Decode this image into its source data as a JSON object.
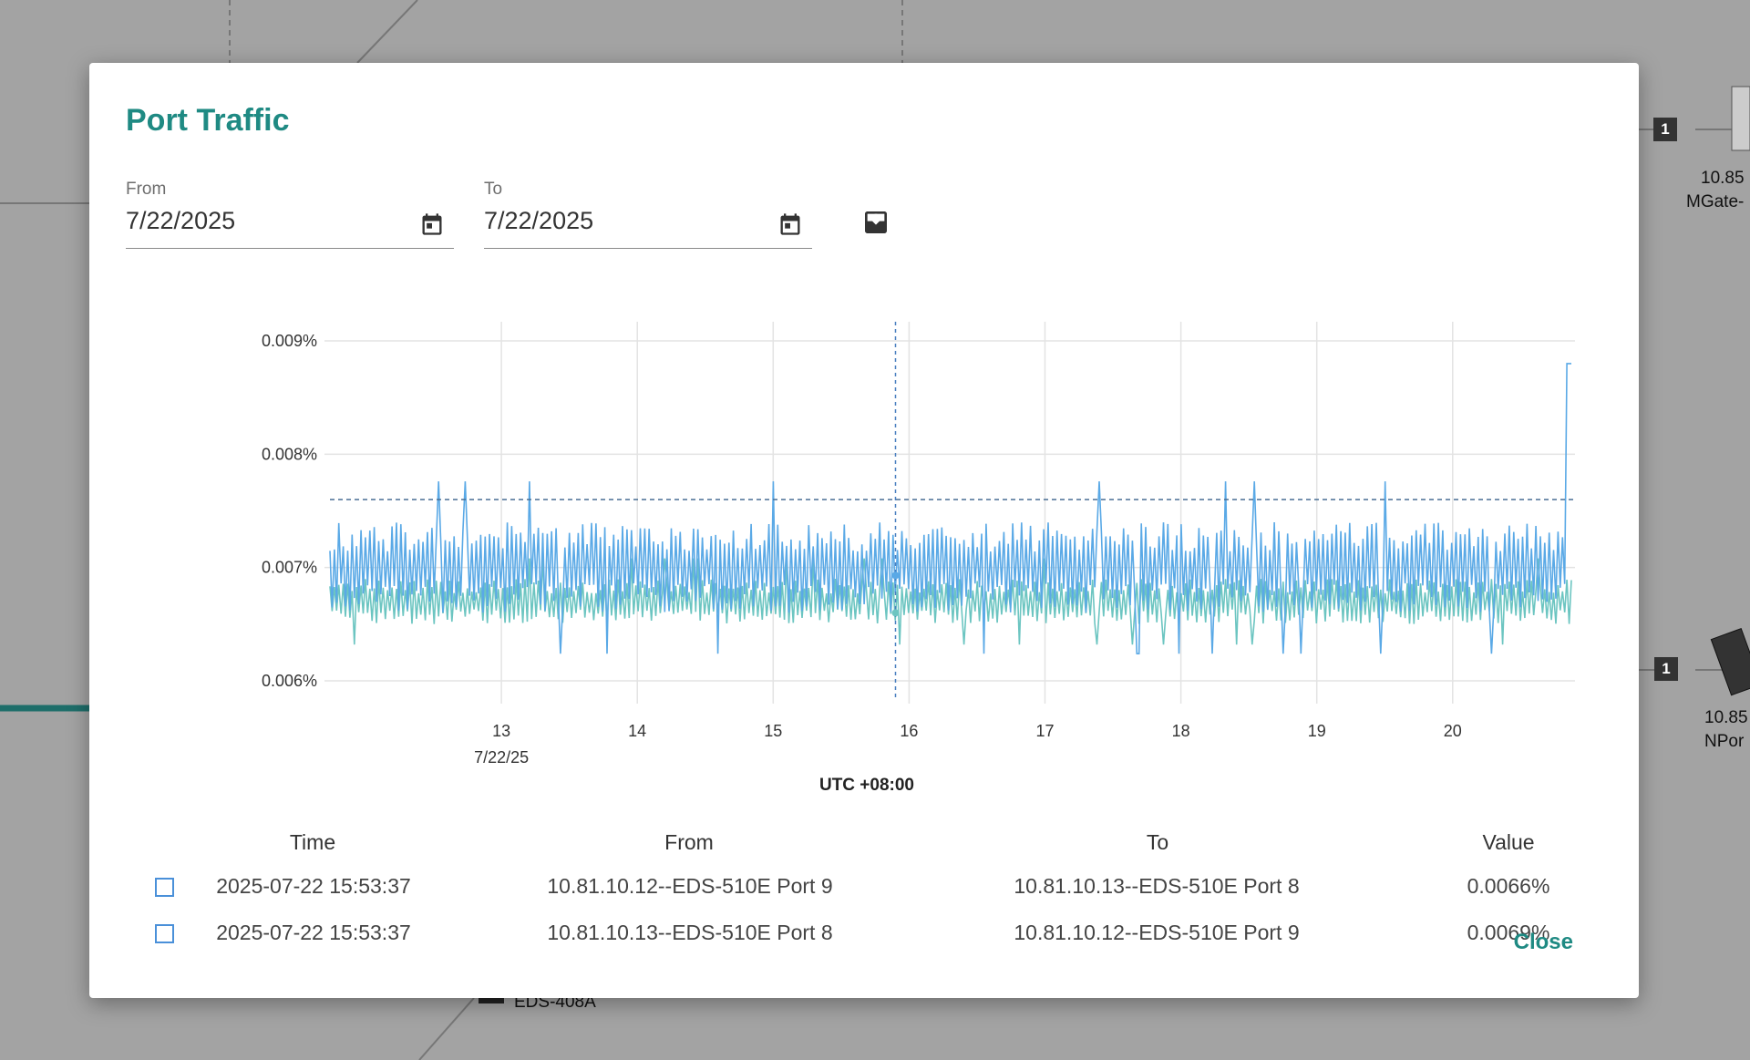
{
  "background": {
    "device1": {
      "ip": "10.85",
      "name": "MGate-",
      "port": "1"
    },
    "device2": {
      "ip": "10.85",
      "name": "NPor",
      "port": "1"
    },
    "device3": {
      "name": "EDS-408A"
    }
  },
  "dialog": {
    "title": "Port Traffic",
    "from_label": "From",
    "from_value": "7/22/2025",
    "to_label": "To",
    "to_value": "7/22/2025",
    "close_label": "Close",
    "icons": [
      "calendar-icon",
      "calendar-icon",
      "export-icon"
    ]
  },
  "chart_data": {
    "type": "line",
    "xlabel": "UTC +08:00",
    "x_ticks": [
      "13",
      "14",
      "15",
      "16",
      "17",
      "18",
      "19",
      "20"
    ],
    "x_tick_sublabel": "7/22/25",
    "y_ticks": [
      "0.009%",
      "0.008%",
      "0.007%",
      "0.006%"
    ],
    "ylim": [
      0.006,
      0.009
    ],
    "grid": true,
    "reference_line": 0.0076,
    "cursor_x": 15.9,
    "series": [
      {
        "color": "#5aa9e6",
        "mean": 0.007,
        "spread": 0.0004
      },
      {
        "color": "#6cc5c1",
        "mean": 0.0067,
        "spread": 0.0002
      }
    ]
  },
  "table": {
    "headers": [
      "Time",
      "From",
      "To",
      "Value"
    ],
    "rows": [
      {
        "time": "2025-07-22 15:53:37",
        "from": "10.81.10.12--EDS-510E Port 9",
        "to": "10.81.10.13--EDS-510E Port 8",
        "value": "0.0066%"
      },
      {
        "time": "2025-07-22 15:53:37",
        "from": "10.81.10.13--EDS-510E Port 8",
        "to": "10.81.10.12--EDS-510E Port 9",
        "value": "0.0069%"
      }
    ]
  },
  "colors": {
    "accent": "#1f8a83",
    "series1": "#5aa9e6",
    "series2": "#6cc5c1",
    "checkbox": "#4a90d9"
  }
}
